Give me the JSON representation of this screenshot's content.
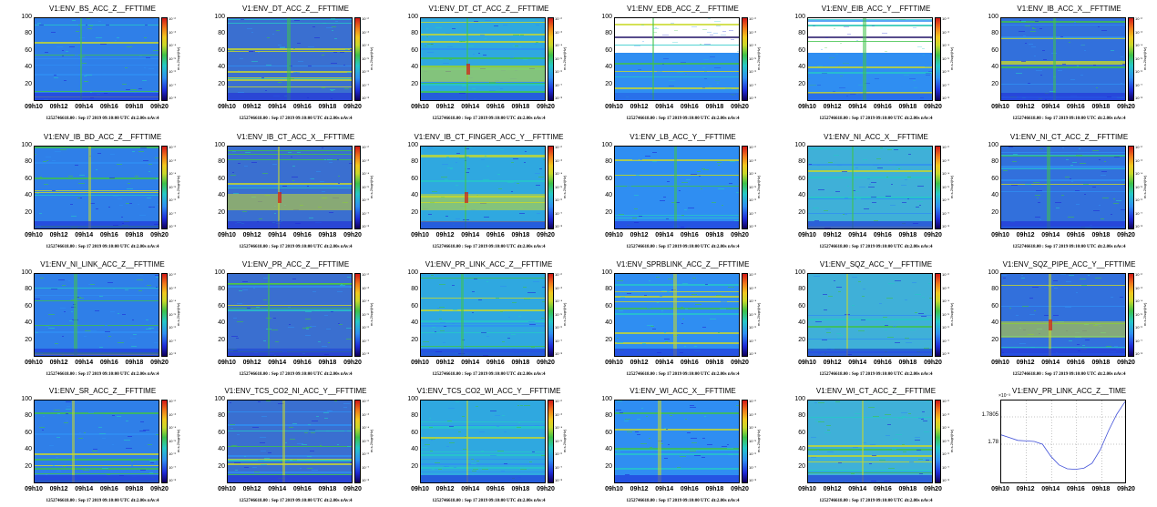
{
  "footer_text": "1252746618.00 : Sep 17 2019 09:10:00 UTC dt:2.00s nAv:4",
  "colorbar_label": "m.s-2/sqrt(Hz)",
  "colorbar_ticks": [
    "10⁻²",
    "10⁻³",
    "10⁻⁴",
    "10⁻⁵",
    "10⁻⁶",
    "10⁻⁷",
    "10⁻⁸"
  ],
  "colors": {
    "background": "#3a6fd0",
    "line": "#3f4fd8"
  },
  "chart_data": [
    {
      "type": "heatmap",
      "title": "V1:ENV_BS_ACC_Z__FFTTIME",
      "x_ticks": [
        "09h10",
        "09h12",
        "09h14",
        "09h16",
        "09h18",
        "09h20"
      ],
      "y_ticks": [
        "100",
        "80",
        "60",
        "40",
        "20"
      ],
      "ylim": [
        0,
        100
      ],
      "colorscale": "log"
    },
    {
      "type": "heatmap",
      "title": "V1:ENV_DT_ACC_Z__FFTTIME",
      "x_ticks": [
        "09h10",
        "09h12",
        "09h14",
        "09h16",
        "09h18",
        "09h20"
      ],
      "y_ticks": [
        "100",
        "80",
        "60",
        "40",
        "20"
      ],
      "ylim": [
        0,
        100
      ],
      "colorscale": "log"
    },
    {
      "type": "heatmap",
      "title": "V1:ENV_DT_CT_ACC_Z__FFTTIME",
      "x_ticks": [
        "09h10",
        "09h12",
        "09h14",
        "09h16",
        "09h18",
        "09h20"
      ],
      "y_ticks": [
        "100",
        "80",
        "60",
        "40",
        "20"
      ],
      "ylim": [
        0,
        100
      ],
      "colorscale": "log"
    },
    {
      "type": "heatmap",
      "title": "V1:ENV_EDB_ACC_Z__FFTTIME",
      "x_ticks": [
        "09h10",
        "09h12",
        "09h14",
        "09h16",
        "09h18",
        "09h20"
      ],
      "y_ticks": [
        "100",
        "80",
        "60",
        "40",
        "20"
      ],
      "ylim": [
        0,
        100
      ],
      "colorscale": "log"
    },
    {
      "type": "heatmap",
      "title": "V1:ENV_EIB_ACC_Y__FFTTIME",
      "x_ticks": [
        "09h10",
        "09h12",
        "09h14",
        "09h16",
        "09h18",
        "09h20"
      ],
      "y_ticks": [
        "100",
        "80",
        "60",
        "40",
        "20"
      ],
      "ylim": [
        0,
        100
      ],
      "colorscale": "log"
    },
    {
      "type": "heatmap",
      "title": "V1:ENV_IB_ACC_X__FFTTIME",
      "x_ticks": [
        "09h10",
        "09h12",
        "09h14",
        "09h16",
        "09h18",
        "09h20"
      ],
      "y_ticks": [
        "100",
        "80",
        "60",
        "40",
        "20"
      ],
      "ylim": [
        0,
        100
      ],
      "colorscale": "log"
    },
    {
      "type": "heatmap",
      "title": "V1:ENV_IB_BD_ACC_Z__FFTTIME",
      "x_ticks": [
        "09h10",
        "09h12",
        "09h14",
        "09h16",
        "09h18",
        "09h20"
      ],
      "y_ticks": [
        "100",
        "80",
        "60",
        "40",
        "20"
      ],
      "ylim": [
        0,
        100
      ],
      "colorscale": "log"
    },
    {
      "type": "heatmap",
      "title": "V1:ENV_IB_CT_ACC_X__FFTTIME",
      "x_ticks": [
        "09h10",
        "09h12",
        "09h14",
        "09h16",
        "09h18",
        "09h20"
      ],
      "y_ticks": [
        "100",
        "80",
        "60",
        "40",
        "20"
      ],
      "ylim": [
        0,
        100
      ],
      "colorscale": "log"
    },
    {
      "type": "heatmap",
      "title": "V1:ENV_IB_CT_FINGER_ACC_Y__FFTTIME",
      "x_ticks": [
        "09h10",
        "09h12",
        "09h14",
        "09h16",
        "09h18",
        "09h20"
      ],
      "y_ticks": [
        "100",
        "80",
        "60",
        "40",
        "20"
      ],
      "ylim": [
        0,
        100
      ],
      "colorscale": "log"
    },
    {
      "type": "heatmap",
      "title": "V1:ENV_LB_ACC_Y__FFTTIME",
      "x_ticks": [
        "09h10",
        "09h12",
        "09h14",
        "09h16",
        "09h18",
        "09h20"
      ],
      "y_ticks": [
        "100",
        "80",
        "60",
        "40",
        "20"
      ],
      "ylim": [
        0,
        100
      ],
      "colorscale": "log"
    },
    {
      "type": "heatmap",
      "title": "V1:ENV_NI_ACC_X__FFTTIME",
      "x_ticks": [
        "09h10",
        "09h12",
        "09h14",
        "09h16",
        "09h18",
        "09h20"
      ],
      "y_ticks": [
        "100",
        "80",
        "60",
        "40",
        "20"
      ],
      "ylim": [
        0,
        100
      ],
      "colorscale": "log"
    },
    {
      "type": "heatmap",
      "title": "V1:ENV_NI_CT_ACC_Z__FFTTIME",
      "x_ticks": [
        "09h10",
        "09h12",
        "09h14",
        "09h16",
        "09h18",
        "09h20"
      ],
      "y_ticks": [
        "100",
        "80",
        "60",
        "40",
        "20"
      ],
      "ylim": [
        0,
        100
      ],
      "colorscale": "log"
    },
    {
      "type": "heatmap",
      "title": "V1:ENV_NI_LINK_ACC_Z__FFTTIME",
      "x_ticks": [
        "09h10",
        "09h12",
        "09h14",
        "09h16",
        "09h18",
        "09h20"
      ],
      "y_ticks": [
        "100",
        "80",
        "60",
        "40",
        "20"
      ],
      "ylim": [
        0,
        100
      ],
      "colorscale": "log"
    },
    {
      "type": "heatmap",
      "title": "V1:ENV_PR_ACC_Z__FFTTIME",
      "x_ticks": [
        "09h10",
        "09h12",
        "09h14",
        "09h16",
        "09h18",
        "09h20"
      ],
      "y_ticks": [
        "100",
        "80",
        "60",
        "40",
        "20"
      ],
      "ylim": [
        0,
        100
      ],
      "colorscale": "log"
    },
    {
      "type": "heatmap",
      "title": "V1:ENV_PR_LINK_ACC_Z__FFTTIME",
      "x_ticks": [
        "09h10",
        "09h12",
        "09h14",
        "09h16",
        "09h18",
        "09h20"
      ],
      "y_ticks": [
        "100",
        "80",
        "60",
        "40",
        "20"
      ],
      "ylim": [
        0,
        100
      ],
      "colorscale": "log"
    },
    {
      "type": "heatmap",
      "title": "V1:ENV_SPRBLINK_ACC_Z__FFTTIME",
      "x_ticks": [
        "09h10",
        "09h12",
        "09h14",
        "09h16",
        "09h18",
        "09h20"
      ],
      "y_ticks": [
        "100",
        "80",
        "60",
        "40",
        "20"
      ],
      "ylim": [
        0,
        100
      ],
      "colorscale": "log"
    },
    {
      "type": "heatmap",
      "title": "V1:ENV_SQZ_ACC_Y__FFTTIME",
      "x_ticks": [
        "09h10",
        "09h12",
        "09h14",
        "09h16",
        "09h18",
        "09h20"
      ],
      "y_ticks": [
        "100",
        "80",
        "60",
        "40",
        "20"
      ],
      "ylim": [
        0,
        100
      ],
      "colorscale": "log"
    },
    {
      "type": "heatmap",
      "title": "V1:ENV_SQZ_PIPE_ACC_Y__FFTTIME",
      "x_ticks": [
        "09h10",
        "09h12",
        "09h14",
        "09h16",
        "09h18",
        "09h20"
      ],
      "y_ticks": [
        "100",
        "80",
        "60",
        "40",
        "20"
      ],
      "ylim": [
        0,
        100
      ],
      "colorscale": "log"
    },
    {
      "type": "heatmap",
      "title": "V1:ENV_SR_ACC_Z__FFTTIME",
      "x_ticks": [
        "09h10",
        "09h12",
        "09h14",
        "09h16",
        "09h18",
        "09h20"
      ],
      "y_ticks": [
        "100",
        "80",
        "60",
        "40",
        "20"
      ],
      "ylim": [
        0,
        100
      ],
      "colorscale": "log"
    },
    {
      "type": "heatmap",
      "title": "V1:ENV_TCS_CO2_NI_ACC_Y__FFTTIME",
      "x_ticks": [
        "09h10",
        "09h12",
        "09h14",
        "09h16",
        "09h18",
        "09h20"
      ],
      "y_ticks": [
        "100",
        "80",
        "60",
        "40",
        "20"
      ],
      "ylim": [
        0,
        100
      ],
      "colorscale": "log"
    },
    {
      "type": "heatmap",
      "title": "V1:ENV_TCS_CO2_WI_ACC_Y__FFTTIME",
      "x_ticks": [
        "09h10",
        "09h12",
        "09h14",
        "09h16",
        "09h18",
        "09h20"
      ],
      "y_ticks": [
        "100",
        "80",
        "60",
        "40",
        "20"
      ],
      "ylim": [
        0,
        100
      ],
      "colorscale": "log"
    },
    {
      "type": "heatmap",
      "title": "V1:ENV_WI_ACC_X__FFTTIME",
      "x_ticks": [
        "09h10",
        "09h12",
        "09h14",
        "09h16",
        "09h18",
        "09h20"
      ],
      "y_ticks": [
        "100",
        "80",
        "60",
        "40",
        "20"
      ],
      "ylim": [
        0,
        100
      ],
      "colorscale": "log"
    },
    {
      "type": "heatmap",
      "title": "V1:ENV_WI_CT_ACC_Z__FFTTIME",
      "x_ticks": [
        "09h10",
        "09h12",
        "09h14",
        "09h16",
        "09h18",
        "09h20"
      ],
      "y_ticks": [
        "100",
        "80",
        "60",
        "40",
        "20"
      ],
      "ylim": [
        0,
        100
      ],
      "colorscale": "log"
    },
    {
      "type": "line",
      "title": "V1:ENV_PR_LINK_ACC_Z__TIME",
      "x_ticks": [
        "09h10",
        "09h12",
        "09h14",
        "09h16",
        "09h18",
        "09h20"
      ],
      "y_ticks": [
        "1.7805",
        "1.78"
      ],
      "y_exponent": "×10⁻³",
      "ylim": [
        1.7793,
        1.7808
      ],
      "x": [
        "09h10",
        "09h11",
        "09h12",
        "09h13",
        "09h14",
        "09h15",
        "09h15.5",
        "09h16",
        "09h16.5",
        "09h17",
        "09h17.5",
        "09h18",
        "09h18.5",
        "09h19",
        "09h19.5",
        "09h20"
      ],
      "y": [
        1.78017,
        1.78012,
        1.78007,
        1.78006,
        1.78005,
        1.78,
        1.77978,
        1.77962,
        1.77955,
        1.77954,
        1.77956,
        1.77965,
        1.7799,
        1.78025,
        1.78055,
        1.78078
      ]
    }
  ]
}
